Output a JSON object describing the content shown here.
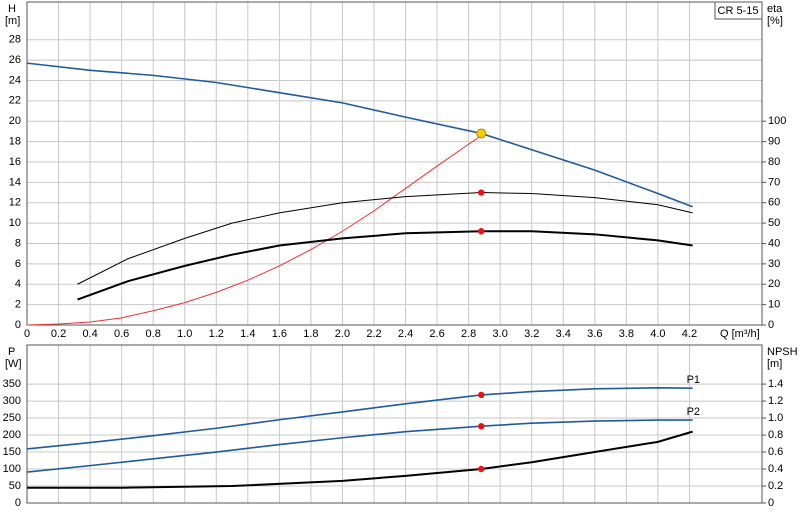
{
  "chart_data": [
    {
      "type": "line",
      "ylabel": "H",
      "yunit": "[m]",
      "y2label": "eta",
      "y2unit": "[%]",
      "xlabel": "Q [m³/h]",
      "annotation": "CR 5-15",
      "xlim": [
        0,
        4.66
      ],
      "ylim": [
        0,
        31.7
      ],
      "y2lim": [
        0,
        158.5
      ],
      "xticks": [
        0,
        0.2,
        0.4,
        0.6,
        0.8,
        {
          "value": 1,
          "label": "1.0"
        },
        1.2,
        1.4,
        1.6,
        1.8,
        {
          "value": 2,
          "label": "2.0"
        },
        2.2,
        2.4,
        2.6,
        2.8,
        {
          "value": 3,
          "label": "3.0"
        },
        3.2,
        3.4,
        3.6,
        3.8,
        {
          "value": 4,
          "label": "4.0"
        },
        4.2
      ],
      "yticks": [
        0,
        2,
        4,
        6,
        8,
        10,
        12,
        14,
        16,
        18,
        20,
        22,
        24,
        26,
        28
      ],
      "y2ticks": [
        0,
        10,
        20,
        30,
        40,
        50,
        60,
        70,
        80,
        90,
        100
      ],
      "grid": true,
      "series": [
        {
          "color": "#1f5aa0",
          "x": [
            0,
            0.4,
            0.8,
            1.2,
            1.6,
            2.0,
            2.4,
            2.88,
            3.2,
            3.6,
            4.0,
            4.22
          ],
          "values": [
            25.7,
            25.0,
            24.5,
            23.8,
            22.8,
            21.8,
            20.4,
            18.8,
            17.2,
            15.2,
            12.9,
            11.6
          ]
        },
        {
          "color": "#f03030",
          "axis": "y2",
          "x": [
            0,
            0.2,
            0.4,
            0.6,
            0.8,
            1.0,
            1.2,
            1.4,
            1.6,
            1.8,
            2.0,
            2.2,
            2.4,
            2.6,
            2.88
          ],
          "values": [
            0,
            0.5,
            1.5,
            3.5,
            7,
            11,
            16,
            22,
            29,
            37,
            46,
            56,
            67,
            78,
            93
          ]
        },
        {
          "color": "#000000",
          "x": [
            0.32,
            0.64,
            1.0,
            1.3,
            1.6,
            2.0,
            2.4,
            2.88,
            3.2,
            3.6,
            4.0,
            4.22
          ],
          "values": [
            4.0,
            6.5,
            8.5,
            10,
            11,
            12,
            12.6,
            13,
            12.9,
            12.5,
            11.8,
            11.0
          ]
        },
        {
          "color": "#000000",
          "x": [
            0.32,
            0.64,
            1.0,
            1.3,
            1.6,
            2.0,
            2.4,
            2.88,
            3.2,
            3.6,
            4.0,
            4.22
          ],
          "values": [
            2.5,
            4.3,
            5.8,
            6.9,
            7.8,
            8.5,
            9.0,
            9.2,
            9.2,
            8.9,
            8.3,
            7.8
          ]
        }
      ],
      "points": [
        {
          "x": 2.88,
          "y": 18.8,
          "color": "#f5d000"
        },
        {
          "x": 2.88,
          "y": 13,
          "color": "#ee1111"
        },
        {
          "x": 2.88,
          "y": 9.2,
          "color": "#ee1111"
        }
      ]
    },
    {
      "type": "line",
      "ylabel": "P",
      "yunit": "[W]",
      "y2label": "NPSH",
      "y2unit": "[m]",
      "ylim": [
        0,
        465
      ],
      "y2lim": [
        0,
        1.86
      ],
      "yticks": [
        0,
        50,
        100,
        150,
        200,
        250,
        300,
        350
      ],
      "y2ticks": [
        0,
        0.2,
        0.4,
        0.6,
        0.8,
        {
          "value": 1,
          "label": "1.0"
        },
        1.2,
        1.4
      ],
      "grid": true,
      "series": [
        {
          "name": "P1",
          "color": "#1f5aa0",
          "x": [
            0,
            0.4,
            0.8,
            1.2,
            1.6,
            2.0,
            2.4,
            2.88,
            3.2,
            3.6,
            4.0,
            4.22
          ],
          "values": [
            159,
            178,
            198,
            220,
            245,
            268,
            292,
            318,
            328,
            336,
            339,
            338
          ]
        },
        {
          "name": "P2",
          "color": "#1f5aa0",
          "x": [
            0,
            0.4,
            0.8,
            1.2,
            1.6,
            2.0,
            2.4,
            2.88,
            3.2,
            3.6,
            4.0,
            4.22
          ],
          "values": [
            91,
            110,
            130,
            150,
            172,
            192,
            210,
            226,
            235,
            241,
            244,
            244
          ]
        },
        {
          "color": "#000000",
          "axis": "y2",
          "x": [
            0,
            0.6,
            1.3,
            2.0,
            2.4,
            2.88,
            3.2,
            3.6,
            4.0,
            4.22
          ],
          "values": [
            0.18,
            0.18,
            0.2,
            0.26,
            0.32,
            0.4,
            0.48,
            0.6,
            0.72,
            0.84
          ]
        }
      ],
      "points": [
        {
          "x": 2.88,
          "y": 318,
          "color": "#ee1111"
        },
        {
          "x": 2.88,
          "y": 226,
          "color": "#ee1111"
        },
        {
          "x": 2.88,
          "y": 0.4,
          "axis": "y2",
          "color": "#ee1111"
        }
      ]
    }
  ]
}
